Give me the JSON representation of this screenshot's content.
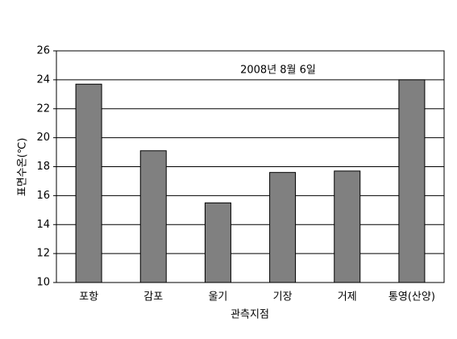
{
  "chart_data": {
    "type": "bar",
    "annotation": "2008년 8월 6일",
    "x_label": "관측지점",
    "y_label": "표면수온(℃)",
    "categories": [
      "포항",
      "감포",
      "울기",
      "기장",
      "거제",
      "통영(산양)"
    ],
    "values": [
      23.7,
      19.1,
      15.5,
      17.6,
      17.7,
      24.0
    ],
    "color": "#808080",
    "ylim": [
      10,
      26
    ],
    "yticks": [
      10,
      12,
      14,
      16,
      18,
      20,
      22,
      24,
      26
    ],
    "grid": true
  }
}
